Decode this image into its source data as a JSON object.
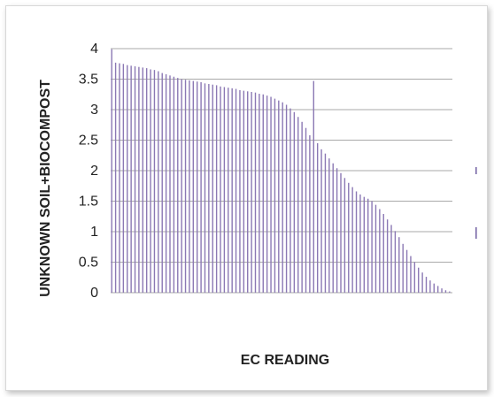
{
  "chart_data": {
    "type": "bar",
    "title": "",
    "xlabel": "EC READING",
    "ylabel": "UNKNOWN SOIL+BIOCOMPOST",
    "ylim": [
      0,
      4
    ],
    "y_ticks": [
      "0",
      "0.5",
      "1",
      "1.5",
      "2",
      "2.5",
      "3",
      "3.5",
      "4"
    ],
    "grid": "horizontal",
    "legend": "right, no text",
    "colors": {
      "bars": "#8b78b4",
      "grid": "#aaaaaa",
      "legend": "#7a6aa8"
    },
    "series": [
      {
        "values": [
          3.99,
          3.77,
          3.76,
          3.75,
          3.73,
          3.72,
          3.71,
          3.7,
          3.69,
          3.68,
          3.66,
          3.65,
          3.63,
          3.6,
          3.58,
          3.56,
          3.54,
          3.52,
          3.5,
          3.49,
          3.48,
          3.47,
          3.46,
          3.45,
          3.43,
          3.42,
          3.41,
          3.4,
          3.38,
          3.37,
          3.36,
          3.35,
          3.34,
          3.32,
          3.31,
          3.3,
          3.29,
          3.28,
          3.26,
          3.25,
          3.23,
          3.21,
          3.18,
          3.15,
          3.12,
          3.08,
          3.02,
          2.96,
          2.88,
          2.8,
          2.7,
          2.58,
          3.47,
          2.45,
          2.35,
          2.28,
          2.2,
          2.12,
          2.04,
          1.96,
          1.88,
          1.8,
          1.73,
          1.66,
          1.61,
          1.57,
          1.54,
          1.5,
          1.44,
          1.37,
          1.29,
          1.2,
          1.11,
          1.01,
          0.91,
          0.8,
          0.7,
          0.6,
          0.5,
          0.41,
          0.33,
          0.26,
          0.2,
          0.15,
          0.11,
          0.07,
          0.04,
          0.02
        ]
      }
    ]
  }
}
